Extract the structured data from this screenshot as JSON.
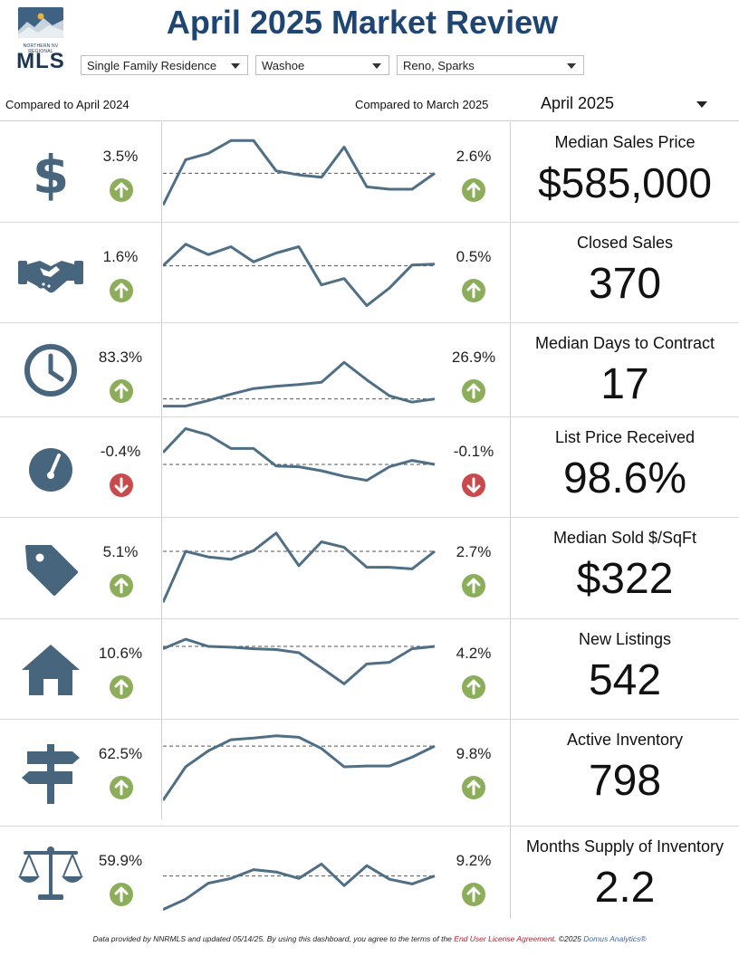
{
  "header": {
    "logo_tagline": "NORTHERN NV REGIONAL",
    "logo_text": "MLS",
    "title": "April 2025 Market Review"
  },
  "filters": {
    "property_type": "Single Family Residence",
    "county": "Washoe",
    "city": "Reno, Sparks"
  },
  "compare": {
    "year_label": "Compared to April 2024",
    "month_label": "Compared to March 2025",
    "selected_month": "April 2025"
  },
  "colors": {
    "up": "#8cae5a",
    "down": "#c84a4a",
    "line": "#4f6f86",
    "icon": "#48657e",
    "title": "#1f4672"
  },
  "metrics": [
    {
      "icon": "dollar-icon",
      "yoy": "3.5%",
      "yoy_dir": "up",
      "mom": "2.6%",
      "mom_dir": "up",
      "title": "Median Sales Price",
      "value": "$585,000",
      "trend": [
        0.05,
        0.62,
        0.7,
        0.86,
        0.86,
        0.48,
        0.43,
        0.4,
        0.78,
        0.28,
        0.25,
        0.25,
        0.45
      ],
      "baseline": 0.45
    },
    {
      "icon": "handshake-icon",
      "yoy": "1.6%",
      "yoy_dir": "up",
      "mom": "0.5%",
      "mom_dir": "up",
      "title": "Closed Sales",
      "value": "370",
      "trend": [
        0.55,
        0.82,
        0.69,
        0.79,
        0.6,
        0.71,
        0.79,
        0.31,
        0.39,
        0.05,
        0.27,
        0.56,
        0.57
      ],
      "baseline": 0.55
    },
    {
      "icon": "clock-icon",
      "yoy": "83.3%",
      "yoy_dir": "up",
      "mom": "26.9%",
      "mom_dir": "up",
      "title": "Median Days to Contract",
      "value": "17",
      "trend": [
        0.05,
        0.05,
        0.12,
        0.2,
        0.27,
        0.3,
        0.32,
        0.35,
        0.6,
        0.38,
        0.18,
        0.1,
        0.14
      ],
      "baseline": 0.14
    },
    {
      "icon": "gauge-icon",
      "yoy": "-0.4%",
      "yoy_dir": "down",
      "mom": "-0.1%",
      "mom_dir": "down",
      "title": "List Price Received",
      "value": "98.6%",
      "trend": [
        0.65,
        0.95,
        0.87,
        0.7,
        0.7,
        0.48,
        0.47,
        0.42,
        0.35,
        0.3,
        0.47,
        0.55,
        0.5
      ],
      "baseline": 0.5
    },
    {
      "icon": "tag-icon",
      "yoy": "5.1%",
      "yoy_dir": "up",
      "mom": "2.7%",
      "mom_dir": "up",
      "title": "Median Sold $/SqFt",
      "value": "$322",
      "trend": [
        0.03,
        0.67,
        0.6,
        0.57,
        0.68,
        0.9,
        0.49,
        0.79,
        0.72,
        0.47,
        0.47,
        0.45,
        0.67
      ],
      "baseline": 0.67
    },
    {
      "icon": "house-icon",
      "yoy": "10.6%",
      "yoy_dir": "up",
      "mom": "4.2%",
      "mom_dir": "up",
      "title": "New Listings",
      "value": "542",
      "trend": [
        0.72,
        0.84,
        0.75,
        0.74,
        0.72,
        0.71,
        0.67,
        0.48,
        0.28,
        0.53,
        0.55,
        0.72,
        0.75
      ],
      "baseline": 0.75
    },
    {
      "icon": "signpost-icon",
      "yoy": "62.5%",
      "yoy_dir": "up",
      "mom": "9.8%",
      "mom_dir": "up",
      "title": "Active Inventory",
      "value": "798",
      "trend": [
        0.08,
        0.5,
        0.7,
        0.84,
        0.86,
        0.89,
        0.87,
        0.73,
        0.5,
        0.51,
        0.51,
        0.62,
        0.76
      ],
      "baseline": 0.76
    },
    {
      "icon": "scale-icon",
      "yoy": "59.9%",
      "yoy_dir": "up",
      "mom": "9.2%",
      "mom_dir": "up",
      "title": "Months Supply of Inventory",
      "value": "2.2",
      "trend": [
        0.05,
        0.18,
        0.38,
        0.44,
        0.55,
        0.52,
        0.44,
        0.62,
        0.35,
        0.6,
        0.43,
        0.37,
        0.47
      ],
      "baseline": 0.47
    }
  ],
  "footer": {
    "text_before": "Data provided by NNRMLS and updated 05/14/25.  By using this dashboard, you agree to the terms of the ",
    "link": "End User License Agreement",
    "text_after": ".  ©2025 ",
    "brand": "Domus Analytics®"
  }
}
